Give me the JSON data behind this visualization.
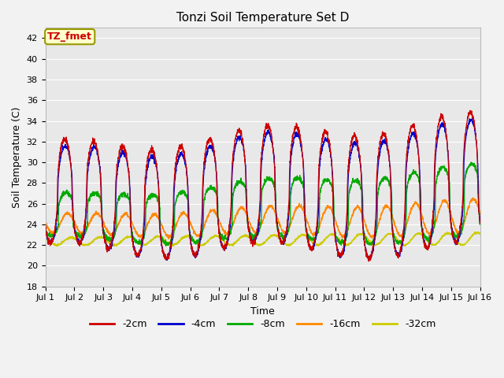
{
  "title": "Tonzi Soil Temperature Set D",
  "xlabel": "Time",
  "ylabel": "Soil Temperature (C)",
  "ylim": [
    18,
    43
  ],
  "xlim": [
    0,
    15
  ],
  "xtick_labels": [
    "Jul 1",
    "Jul 2",
    "Jul 3",
    "Jul 4",
    "Jul 5",
    "Jul 6",
    "Jul 7",
    "Jul 8",
    "Jul 9",
    "Jul 10",
    "Jul 11",
    "Jul 12",
    "Jul 13",
    "Jul 14",
    "Jul 15",
    "Jul 16"
  ],
  "legend_labels": [
    "-2cm",
    "-4cm",
    "-8cm",
    "-16cm",
    "-32cm"
  ],
  "line_colors": [
    "#cc0000",
    "#0000cc",
    "#00aa00",
    "#ff8800",
    "#cccc00"
  ],
  "annotation_text": "TZ_fmet",
  "annotation_bg": "#ffffcc",
  "annotation_border": "#999900",
  "plot_bg": "#e8e8e8",
  "fig_bg": "#f2f2f2",
  "n_points": 3000,
  "days": 15
}
